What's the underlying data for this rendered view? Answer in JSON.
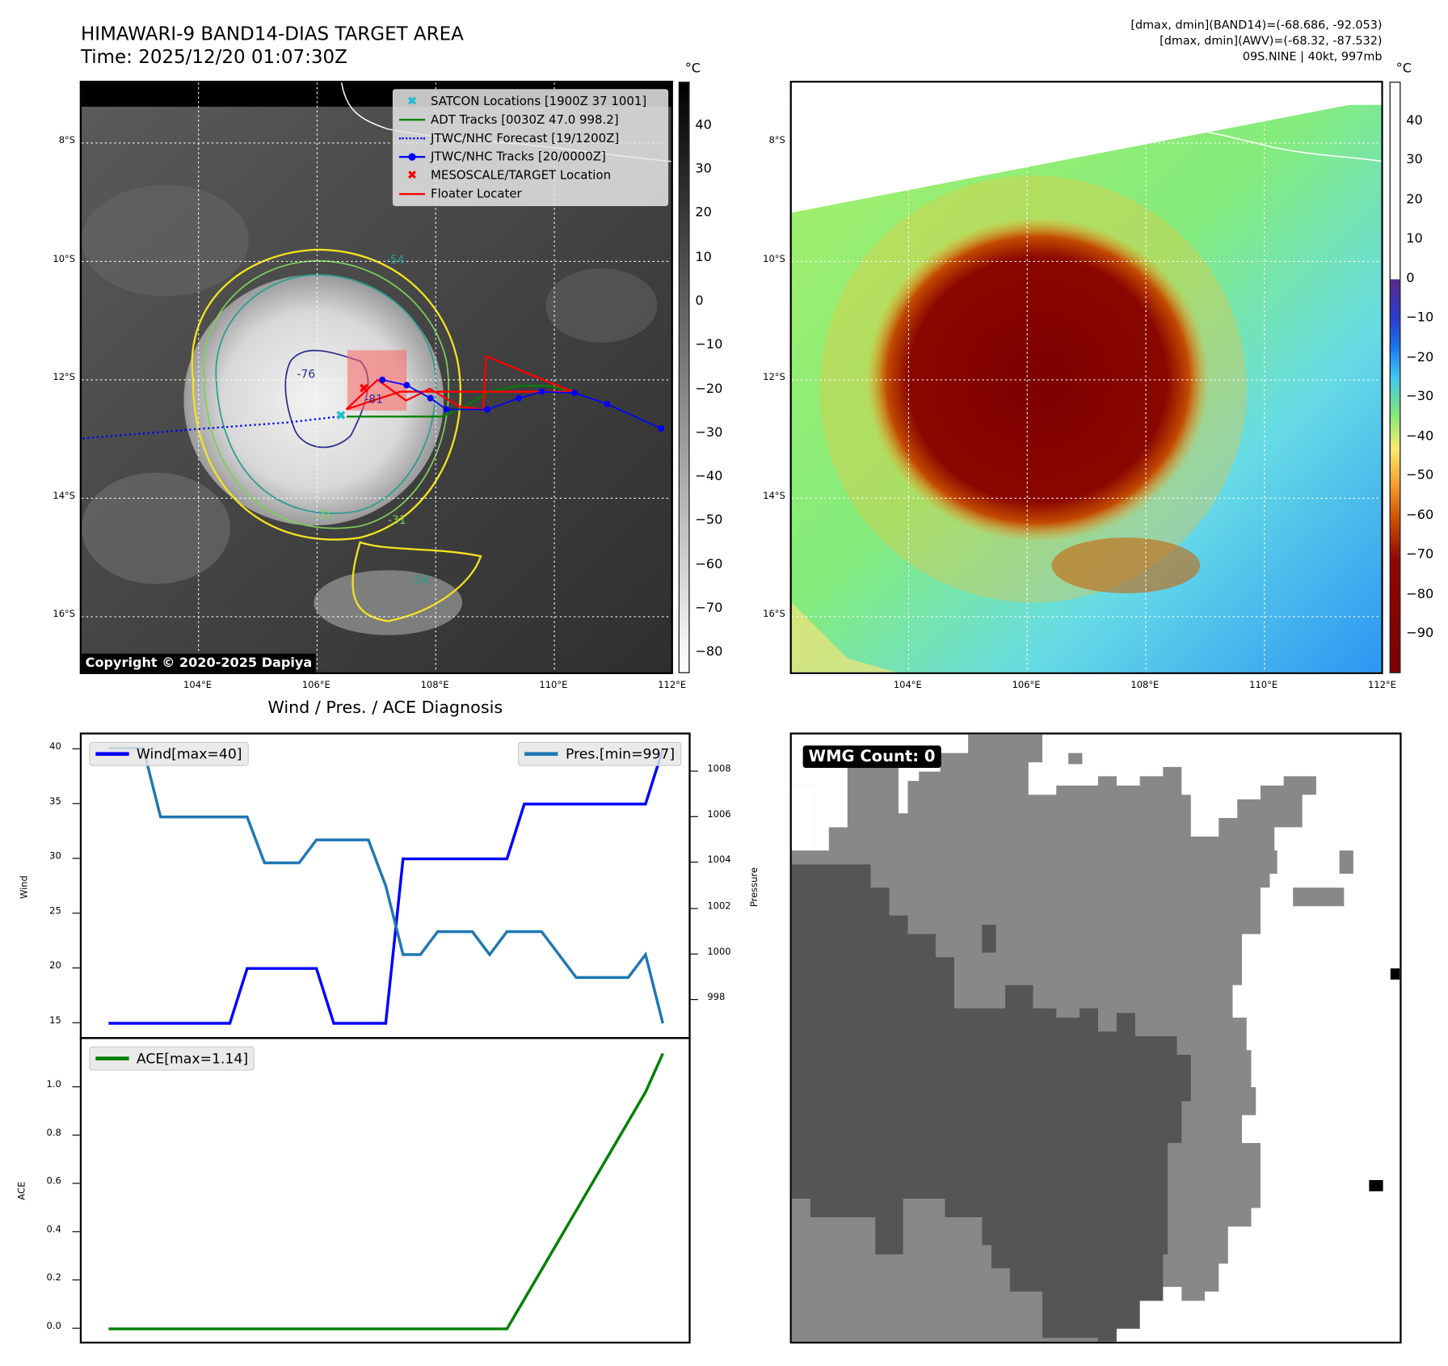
{
  "header": {
    "title_line1": "HIMAWARI-9 BAND14-DIAS TARGET AREA",
    "title_line2": "Time: 2025/12/20 01:07:30Z",
    "stats_line1": "[dmax, dmin](BAND14)=(-68.686, -92.053)",
    "stats_line2": "[dmax, dmin](AWV)=(-68.32, -87.532)",
    "stats_line3": "09S.NINE | 40kt, 997mb"
  },
  "map": {
    "lat_labels": [
      "8°S",
      "10°S",
      "12°S",
      "14°S",
      "16°S"
    ],
    "lon_labels": [
      "104°E",
      "106°E",
      "108°E",
      "110°E",
      "112°E"
    ],
    "lat_values": [
      8,
      10,
      12,
      14,
      16
    ],
    "lon_values": [
      104,
      106,
      108,
      110,
      112
    ],
    "lon_range": [
      102.03,
      112.0
    ],
    "lat_range": [
      6.98,
      16.97
    ],
    "copyright": "Copyright © 2020-2025 Dapiya",
    "contour_labels": [
      "-54",
      "-76",
      "-81",
      "-31",
      "-54",
      "-31"
    ],
    "legend": [
      {
        "label": "SATCON Locations [1900Z 37 1001]",
        "symbol": "x-marker",
        "color": "#17becf"
      },
      {
        "label": "ADT Tracks [0030Z 47.0 998.2]",
        "symbol": "line",
        "color": "#008000"
      },
      {
        "label": "JTWC/NHC Forecast [19/1200Z]",
        "symbol": "dotted",
        "color": "#0000ff"
      },
      {
        "label": "JTWC/NHC Tracks [20/0000Z]",
        "symbol": "line-dot",
        "color": "#0000ff"
      },
      {
        "label": "MESOSCALE/TARGET Location",
        "symbol": "x-marker",
        "color": "#ff0000"
      },
      {
        "label": "Floater Locater",
        "symbol": "line",
        "color": "#ff0000"
      }
    ],
    "jtwc_tracks": [
      [
        107.1,
        12.0
      ],
      [
        107.51,
        12.09
      ],
      [
        107.91,
        12.31
      ],
      [
        108.18,
        12.5
      ],
      [
        108.87,
        12.5
      ],
      [
        109.4,
        12.31
      ],
      [
        109.79,
        12.2
      ],
      [
        110.34,
        12.22
      ],
      [
        110.89,
        12.41
      ],
      [
        111.8,
        12.82
      ]
    ],
    "jtwc_forecast": [
      [
        102.05,
        12.99
      ],
      [
        104.0,
        12.83
      ],
      [
        105.5,
        12.72
      ],
      [
        106.46,
        12.61
      ]
    ],
    "adt_tracks": [
      [
        106.5,
        12.62
      ],
      [
        108.1,
        12.62
      ],
      [
        108.5,
        12.45
      ],
      [
        108.9,
        12.2
      ],
      [
        109.4,
        12.1
      ],
      [
        109.9,
        12.1
      ],
      [
        110.3,
        12.2
      ]
    ],
    "floater_path": [
      [
        106.49,
        12.5
      ],
      [
        107.02,
        12.0
      ],
      [
        107.5,
        12.35
      ],
      [
        107.9,
        12.15
      ],
      [
        108.4,
        12.45
      ],
      [
        108.8,
        12.5
      ],
      [
        108.85,
        11.6
      ],
      [
        110.3,
        12.2
      ],
      [
        107.4,
        12.2
      ],
      [
        106.49,
        12.5
      ]
    ],
    "mesoscale_target": [
      106.79,
      12.14
    ],
    "satcon_location": [
      106.4,
      12.6
    ],
    "target_box": [
      106.51,
      11.5,
      107.51,
      12.52
    ]
  },
  "colorbar_left": {
    "unit": "°C",
    "ticks": [
      40,
      30,
      20,
      10,
      0,
      -10,
      -20,
      -30,
      -40,
      -50,
      -60,
      -70,
      -80
    ],
    "tick_labels": [
      "40",
      "30",
      "20",
      "10",
      "0",
      "−10",
      "−20",
      "−30",
      "−40",
      "−50",
      "−60",
      "−70",
      "−80"
    ],
    "range": [
      -84.6,
      50.1
    ]
  },
  "colorbar_right": {
    "unit": "°C",
    "ticks": [
      40,
      30,
      20,
      10,
      0,
      -10,
      -20,
      -30,
      -40,
      -50,
      -60,
      -70,
      -80,
      -90
    ],
    "tick_labels": [
      "40",
      "30",
      "20",
      "10",
      "0",
      "−10",
      "−20",
      "−30",
      "−40",
      "−50",
      "−60",
      "−70",
      "−80",
      "−90"
    ],
    "range": [
      -99.8,
      50.0
    ]
  },
  "chart_data": [
    {
      "type": "line",
      "title": "Wind / Pres. / ACE Diagnosis",
      "x": [
        0,
        1,
        2,
        3,
        4,
        5,
        6,
        7,
        8,
        9,
        10,
        11,
        12,
        13,
        14,
        15,
        16,
        17,
        18,
        19,
        20,
        21,
        22,
        23,
        24,
        25,
        26,
        27,
        28,
        29,
        30,
        31,
        32
      ],
      "series": [
        {
          "name": "Wind[max=40]",
          "axis": "left",
          "color": "#0000ff",
          "values": [
            15,
            15,
            15,
            15,
            15,
            15,
            15,
            15,
            20,
            20,
            20,
            20,
            20,
            15,
            15,
            15,
            15,
            30,
            30,
            30,
            30,
            30,
            30,
            30,
            35,
            35,
            35,
            35,
            35,
            35,
            35,
            35,
            40
          ]
        },
        {
          "name": "Pres.[min=997]",
          "axis": "right",
          "color": "#1f77b4",
          "values": [
            1009,
            1009,
            1009,
            1006,
            1006,
            1006,
            1006,
            1006,
            1006,
            1004,
            1004,
            1004,
            1005,
            1005,
            1005,
            1005,
            1003,
            1000,
            1000,
            1001,
            1001,
            1001,
            1000,
            1001,
            1001,
            1001,
            1000,
            999,
            999,
            999,
            999,
            1000,
            997
          ]
        }
      ],
      "ylabel": "Wind",
      "ylabel_right": "Pressure",
      "ylim": [
        13.74,
        41.35
      ],
      "ylim_right": [
        996.4,
        1009.6
      ],
      "yticks": [
        15,
        20,
        25,
        30,
        35,
        40
      ],
      "yticks_right": [
        998,
        1000,
        1002,
        1004,
        1006,
        1008
      ],
      "legend": [
        "top-left",
        "top-right"
      ]
    },
    {
      "type": "line",
      "x": [
        0,
        1,
        2,
        3,
        4,
        5,
        6,
        7,
        8,
        9,
        10,
        11,
        12,
        13,
        14,
        15,
        16,
        17,
        18,
        19,
        20,
        21,
        22,
        23,
        24,
        25,
        26,
        27,
        28,
        29,
        30,
        31,
        32
      ],
      "series": [
        {
          "name": "ACE[max=1.14]",
          "color": "#008000",
          "values": [
            0,
            0,
            0,
            0,
            0,
            0,
            0,
            0,
            0,
            0,
            0,
            0,
            0,
            0,
            0,
            0,
            0,
            0,
            0,
            0,
            0,
            0,
            0,
            0,
            0.1225,
            0.245,
            0.3675,
            0.49,
            0.6125,
            0.735,
            0.8575,
            0.98,
            1.14
          ]
        }
      ],
      "ylabel": "ACE",
      "ylim": [
        -0.053,
        1.2
      ],
      "yticks": [
        0.0,
        0.2,
        0.4,
        0.6,
        0.8,
        1.0
      ],
      "ytick_labels": [
        "0.0",
        "0.2",
        "0.4",
        "0.6",
        "0.8",
        "1.0"
      ],
      "legend": "top-left"
    }
  ],
  "wmg": {
    "badge": "WMG Count: 0"
  }
}
